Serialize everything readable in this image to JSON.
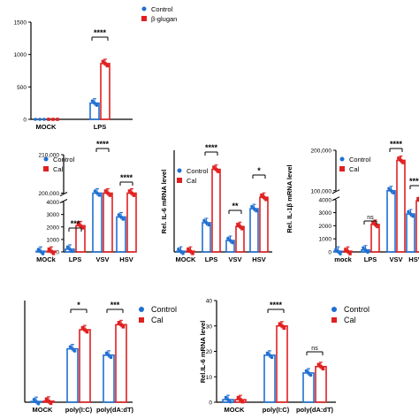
{
  "colors": {
    "control": "#1f6fd1",
    "treat": "#e02020"
  },
  "chart_data": [
    {
      "id": "A",
      "type": "bar",
      "categories": [
        "MOCK",
        "LPS"
      ],
      "ylabel": "",
      "ylim": [
        0,
        1500
      ],
      "yticks": [
        "0",
        "500",
        "1000",
        "1500"
      ],
      "series": [
        {
          "name": "Control",
          "values": [
            2,
            250
          ],
          "points": [
            [
              1,
              2,
              3
            ],
            [
              220,
              250,
              275
            ]
          ]
        },
        {
          "name": "β-glugan",
          "values": [
            3,
            860
          ],
          "points": [
            [
              2,
              3,
              4
            ],
            [
              720,
              870,
              990
            ]
          ]
        }
      ],
      "legend": [
        "Control",
        "β-glugan"
      ],
      "sig": [
        {
          "label": "****",
          "category": "LPS"
        }
      ]
    },
    {
      "id": "B",
      "type": "bar",
      "broken_axis": true,
      "categories": [
        "MOCk",
        "LPS",
        "VSV",
        "HSV"
      ],
      "ylabel": "",
      "yticks": [
        "0",
        "1000",
        "2000",
        "3000",
        "4000",
        "200,000",
        "210,000"
      ],
      "series": [
        {
          "name": "Control",
          "values": [
            30,
            220,
            4700,
            2800
          ]
        },
        {
          "name": "Cal",
          "values": [
            50,
            2100,
            181000,
            4950
          ]
        }
      ],
      "legend": [
        "Control",
        "Cal"
      ],
      "sig": [
        {
          "label": "***",
          "category": "LPS"
        },
        {
          "label": "****",
          "category": "VSV"
        },
        {
          "label": "****",
          "category": "HSV"
        }
      ]
    },
    {
      "id": "C",
      "type": "bar",
      "categories": [
        "MOCK",
        "LPS",
        "VSV",
        "HSV"
      ],
      "ylabel": "Rel. IL-6 mRNA level",
      "ylim": [
        0,
        800
      ],
      "series": [
        {
          "name": "Control",
          "values": [
            5,
            230,
            90,
            340
          ]
        },
        {
          "name": "Cal",
          "values": [
            5,
            650,
            200,
            430
          ]
        }
      ],
      "legend": [
        "Control",
        "Cal"
      ],
      "sig": [
        {
          "label": "****",
          "category": "LPS"
        },
        {
          "label": "**",
          "category": "VSV"
        },
        {
          "label": "*",
          "category": "HSV"
        }
      ]
    },
    {
      "id": "D",
      "type": "bar",
      "broken_axis": true,
      "categories": [
        "mock",
        "LPS",
        "VSV",
        "HSV"
      ],
      "ylabel": "Rel. IL-1β mRNA level",
      "yticks": [
        "0",
        "1000",
        "2000",
        "3000",
        "4000",
        "100,000",
        "200,000"
      ],
      "series": [
        {
          "name": "Control",
          "values": [
            20,
            150,
            4700,
            2900
          ]
        },
        {
          "name": "Cal",
          "values": [
            30,
            2100,
            175000,
            3900
          ]
        }
      ],
      "legend": [
        "Control",
        "Cal"
      ],
      "sig": [
        {
          "label": "ns",
          "category": "LPS"
        },
        {
          "label": "****",
          "category": "VSV"
        },
        {
          "label": "****",
          "category": "HSV"
        }
      ]
    },
    {
      "id": "E",
      "type": "bar",
      "categories": [
        "MOCK",
        "poly(I:C)",
        "poly(dA:dT)"
      ],
      "ylabel": "",
      "ylim": [
        0,
        800
      ],
      "series": [
        {
          "name": "Control",
          "values": [
            5,
            420,
            370
          ]
        },
        {
          "name": "Cal",
          "values": [
            8,
            570,
            610
          ]
        }
      ],
      "legend": [
        "Control",
        "Cal"
      ],
      "sig": [
        {
          "label": "*",
          "category": "poly(I:C)"
        },
        {
          "label": "***",
          "category": "poly(dA:dT)"
        }
      ]
    },
    {
      "id": "F",
      "type": "bar",
      "categories": [
        "MOCK",
        "poly(I:C)",
        "poly(dA:dT)"
      ],
      "ylabel": "Rel.IL-6 mRNA level",
      "ylim": [
        0,
        40
      ],
      "yticks": [
        "0",
        "10",
        "20",
        "30",
        "40"
      ],
      "series": [
        {
          "name": "Control",
          "values": [
            1,
            18.5,
            11.5
          ]
        },
        {
          "name": "Cal",
          "values": [
            1,
            30,
            14
          ]
        }
      ],
      "legend": [
        "Control",
        "Cal"
      ],
      "sig": [
        {
          "label": "****",
          "category": "poly(I:C)"
        },
        {
          "label": "ns",
          "category": "poly(dA:dT)"
        }
      ]
    }
  ]
}
